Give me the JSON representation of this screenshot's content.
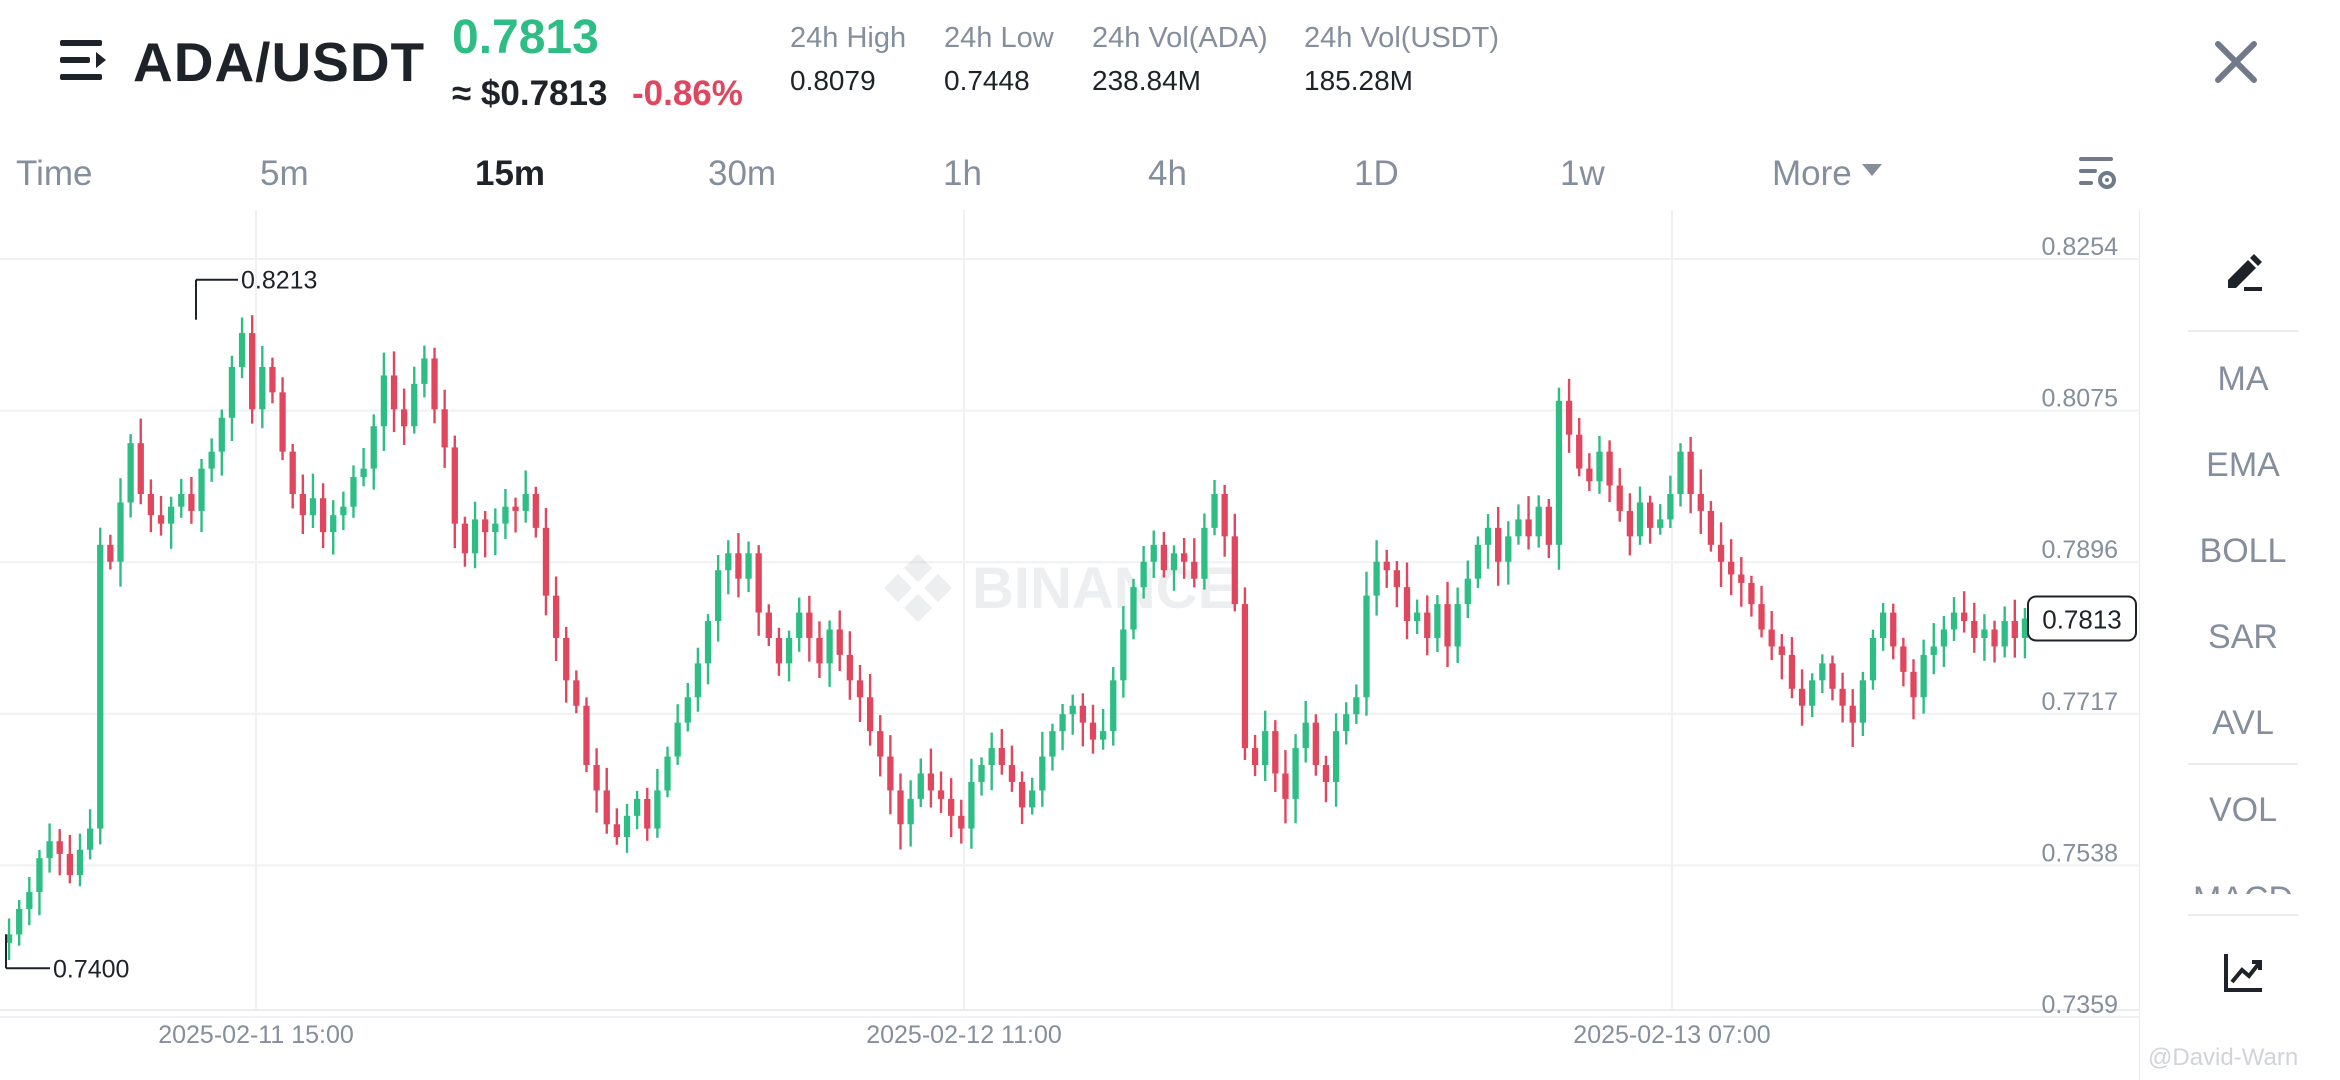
{
  "header": {
    "pair": "ADA/USDT",
    "last_price": "0.7813",
    "usd_price": "≈ $0.7813",
    "change_pct": "-0.86%",
    "stats": [
      {
        "label": "24h High",
        "value": "0.8079"
      },
      {
        "label": "24h Low",
        "value": "0.7448"
      },
      {
        "label": "24h Vol(ADA)",
        "value": "238.84M"
      },
      {
        "label": "24h Vol(USDT)",
        "value": "185.28M"
      }
    ]
  },
  "tabs": {
    "items": [
      "Time",
      "5m",
      "15m",
      "30m",
      "1h",
      "4h",
      "1D",
      "1w",
      "More"
    ],
    "active": "15m"
  },
  "tools": {
    "items": [
      "MA",
      "EMA",
      "BOLL",
      "SAR",
      "AVL",
      "VOL",
      "MACD"
    ]
  },
  "watermark": "BINANCE",
  "credit": "@David-Warn",
  "colors": {
    "up": "#2ebd85",
    "down": "#e0475e",
    "grid": "#f0f1f2",
    "axis_text": "#848e9c"
  },
  "chart_data": {
    "type": "candlestick",
    "y_ticks": [
      "0.8254",
      "0.8075",
      "0.7896",
      "0.7717",
      "0.7538",
      "0.7359"
    ],
    "ylim": [
      0.7359,
      0.8254
    ],
    "x_ticks": [
      "2025-02-11 15:00",
      "2025-02-12 11:00",
      "2025-02-13 07:00"
    ],
    "current_price": "0.7813",
    "max_annotation": "0.8213",
    "min_annotation": "0.7400",
    "closes": [
      0.744,
      0.747,
      0.749,
      0.753,
      0.755,
      0.7535,
      0.751,
      0.754,
      0.7565,
      0.79,
      0.788,
      0.795,
      0.802,
      0.796,
      0.7935,
      0.7925,
      0.7945,
      0.796,
      0.794,
      0.799,
      0.801,
      0.805,
      0.811,
      0.815,
      0.806,
      0.811,
      0.808,
      0.801,
      0.796,
      0.7935,
      0.7955,
      0.7915,
      0.7935,
      0.7945,
      0.798,
      0.799,
      0.804,
      0.81,
      0.806,
      0.804,
      0.809,
      0.812,
      0.806,
      0.8015,
      0.7925,
      0.789,
      0.793,
      0.7915,
      0.7925,
      0.7945,
      0.794,
      0.796,
      0.792,
      0.784,
      0.779,
      0.774,
      0.771,
      0.764,
      0.761,
      0.757,
      0.7555,
      0.758,
      0.76,
      0.7565,
      0.761,
      0.765,
      0.769,
      0.772,
      0.776,
      0.781,
      0.787,
      0.789,
      0.786,
      0.789,
      0.782,
      0.779,
      0.776,
      0.779,
      0.782,
      0.779,
      0.776,
      0.78,
      0.777,
      0.774,
      0.772,
      0.768,
      0.765,
      0.761,
      0.757,
      0.76,
      0.763,
      0.761,
      0.76,
      0.758,
      0.7565,
      0.762,
      0.764,
      0.766,
      0.764,
      0.762,
      0.759,
      0.761,
      0.765,
      0.768,
      0.77,
      0.771,
      0.769,
      0.767,
      0.768,
      0.774,
      0.78,
      0.785,
      0.788,
      0.79,
      0.787,
      0.789,
      0.788,
      0.786,
      0.792,
      0.796,
      0.791,
      0.783,
      0.766,
      0.764,
      0.768,
      0.763,
      0.76,
      0.766,
      0.769,
      0.764,
      0.762,
      0.768,
      0.77,
      0.772,
      0.784,
      0.788,
      0.787,
      0.785,
      0.781,
      0.782,
      0.779,
      0.783,
      0.778,
      0.783,
      0.786,
      0.79,
      0.792,
      0.788,
      0.791,
      0.793,
      0.791,
      0.7945,
      0.79,
      0.807,
      0.803,
      0.799,
      0.7975,
      0.801,
      0.797,
      0.794,
      0.791,
      0.795,
      0.792,
      0.793,
      0.796,
      0.801,
      0.796,
      0.794,
      0.79,
      0.788,
      0.7865,
      0.7855,
      0.783,
      0.78,
      0.778,
      0.777,
      0.773,
      0.771,
      0.774,
      0.776,
      0.773,
      0.771,
      0.769,
      0.774,
      0.779,
      0.782,
      0.778,
      0.775,
      0.772,
      0.777,
      0.778,
      0.78,
      0.782,
      0.781,
      0.779,
      0.78,
      0.778,
      0.781,
      0.779,
      0.7813
    ]
  }
}
